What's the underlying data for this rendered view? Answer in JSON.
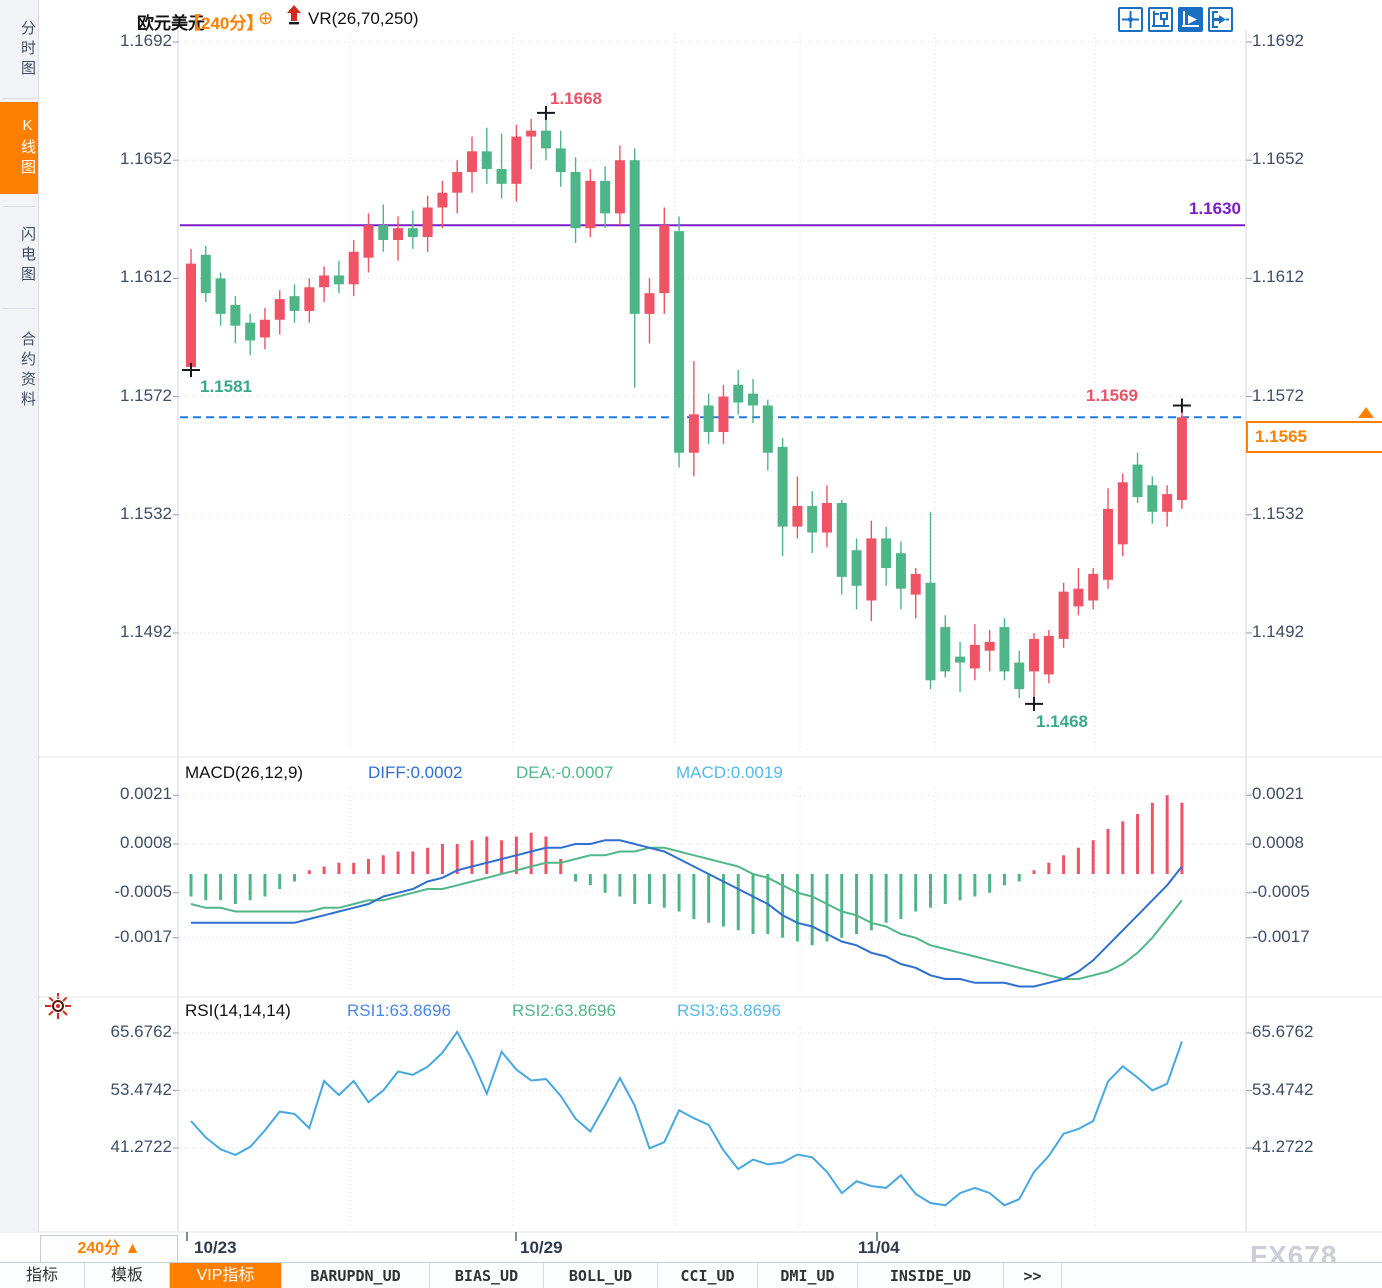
{
  "header": {
    "symbol": "欧元美元",
    "period_tag": "【240分】",
    "plus_icon": "⊕",
    "overlay_indicator": "VR(26,70,250)"
  },
  "sidebar": {
    "tabs": [
      {
        "label": "分时图",
        "active": false
      },
      {
        "label": "K线图",
        "active": true
      },
      {
        "label": "闪电图",
        "active": false
      },
      {
        "label": "合约资料",
        "active": false
      }
    ]
  },
  "toolbar_icons": [
    "crosshair-icon",
    "axes-icon",
    "axes-play-icon",
    "exit-right-icon"
  ],
  "main_chart": {
    "y_labels": [
      "1.1692",
      "1.1652",
      "1.1612",
      "1.1572",
      "1.1532",
      "1.1492"
    ],
    "annotations": {
      "high": "1.1668",
      "first_low": "1.1581",
      "purple_level": "1.1630",
      "final_high": "1.1569",
      "low": "1.1468"
    },
    "price_box": "1.1565"
  },
  "macd_panel": {
    "title": "MACD(26,12,9)",
    "diff_label": "DIFF:0.0002",
    "dea_label": "DEA:-0.0007",
    "macd_label": "MACD:0.0019",
    "y_labels": [
      "0.0021",
      "0.0008",
      "-0.0005",
      "-0.0017"
    ]
  },
  "rsi_panel": {
    "title": "RSI(14,14,14)",
    "rsi1_label": "RSI1:63.8696",
    "rsi2_label": "RSI2:63.8696",
    "rsi3_label": "RSI3:63.8696",
    "y_labels": [
      "65.6762",
      "53.4742",
      "41.2722"
    ]
  },
  "x_axis": {
    "dates": [
      "10/23",
      "10/29",
      "11/04"
    ]
  },
  "footer": {
    "period_selector": "240分 ▲",
    "tabs": [
      {
        "label": "指标",
        "active": false
      },
      {
        "label": "模板",
        "active": false
      },
      {
        "label": "VIP指标",
        "active": true
      },
      {
        "label": "BARUPDN_UD",
        "active": false
      },
      {
        "label": "BIAS_UD",
        "active": false
      },
      {
        "label": "BOLL_UD",
        "active": false
      },
      {
        "label": "CCI_UD",
        "active": false
      },
      {
        "label": "DMI_UD",
        "active": false
      },
      {
        "label": "INSIDE_UD",
        "active": false
      },
      {
        "label": ">>",
        "active": false
      }
    ]
  },
  "watermark": "FX678",
  "colors": {
    "up": "#ef5365",
    "down": "#4eb588",
    "accent_orange": "#ff7f00",
    "purple_line": "#7b1ec8",
    "dashed_blue": "#1e7ce0",
    "diff_blue": "#2f6fd0",
    "dea_green": "#52b788",
    "macd_cyan": "#55b9ea",
    "rsi_line": "#47a8e0",
    "axis_text": "#3f4d66",
    "grid": "#d7dce4",
    "icon_blue": "#1a6fc4",
    "label_red": "#e8556b",
    "label_teal": "#3aa88c"
  },
  "chart_data": [
    {
      "type": "candlestick",
      "title": "欧元美元 240分",
      "x_dates": [
        "10/23",
        "10/29",
        "11/04"
      ],
      "ylim": [
        1.1468,
        1.1692
      ],
      "y_ticks": [
        1.1692,
        1.1652,
        1.1612,
        1.1572,
        1.1532,
        1.1492
      ],
      "grid": "dotted",
      "hlines": [
        {
          "value": 1.163,
          "style": "solid",
          "color": "#7b1ec8",
          "label": "1.1630"
        },
        {
          "value": 1.1565,
          "style": "dashed",
          "color": "#1e7ce0",
          "label": "1.1565"
        }
      ],
      "markers": [
        {
          "index": 0,
          "price": 1.1581
        },
        {
          "index": 24,
          "price": 1.1668
        },
        {
          "index": 57,
          "price": 1.1468
        },
        {
          "index": 67,
          "price": 1.1569
        }
      ],
      "ohlc": [
        [
          1.1582,
          1.1622,
          1.1581,
          1.1617
        ],
        [
          1.162,
          1.1623,
          1.1604,
          1.1607
        ],
        [
          1.1612,
          1.1614,
          1.1596,
          1.16
        ],
        [
          1.1603,
          1.1606,
          1.159,
          1.1596
        ],
        [
          1.1597,
          1.16,
          1.1586,
          1.1591
        ],
        [
          1.1592,
          1.1602,
          1.1588,
          1.1598
        ],
        [
          1.1598,
          1.1608,
          1.1593,
          1.1605
        ],
        [
          1.1606,
          1.161,
          1.1597,
          1.1601
        ],
        [
          1.1601,
          1.1612,
          1.1597,
          1.1609
        ],
        [
          1.1609,
          1.1616,
          1.1604,
          1.1613
        ],
        [
          1.1613,
          1.1618,
          1.1607,
          1.161
        ],
        [
          1.161,
          1.1625,
          1.1606,
          1.1621
        ],
        [
          1.1619,
          1.1634,
          1.1614,
          1.163
        ],
        [
          1.163,
          1.1637,
          1.1621,
          1.1625
        ],
        [
          1.1625,
          1.1633,
          1.1618,
          1.1629
        ],
        [
          1.1629,
          1.1635,
          1.1622,
          1.1626
        ],
        [
          1.1626,
          1.164,
          1.1621,
          1.1636
        ],
        [
          1.1636,
          1.1645,
          1.1629,
          1.1641
        ],
        [
          1.1641,
          1.1652,
          1.1634,
          1.1648
        ],
        [
          1.1648,
          1.166,
          1.1641,
          1.1655
        ],
        [
          1.1655,
          1.1663,
          1.1644,
          1.1649
        ],
        [
          1.1649,
          1.1661,
          1.1639,
          1.1644
        ],
        [
          1.1644,
          1.1664,
          1.1638,
          1.166
        ],
        [
          1.166,
          1.1666,
          1.1649,
          1.1662
        ],
        [
          1.1662,
          1.1668,
          1.1652,
          1.1656
        ],
        [
          1.1656,
          1.1662,
          1.1643,
          1.1648
        ],
        [
          1.1648,
          1.1653,
          1.1624,
          1.1629
        ],
        [
          1.1629,
          1.1649,
          1.1626,
          1.1645
        ],
        [
          1.1645,
          1.165,
          1.1629,
          1.1634
        ],
        [
          1.1634,
          1.1657,
          1.163,
          1.1652
        ],
        [
          1.1652,
          1.1656,
          1.1575,
          1.16
        ],
        [
          1.16,
          1.1612,
          1.159,
          1.1607
        ],
        [
          1.1607,
          1.1636,
          1.16,
          1.163
        ],
        [
          1.1628,
          1.1633,
          1.1548,
          1.1553
        ],
        [
          1.1553,
          1.1584,
          1.1545,
          1.1566
        ],
        [
          1.1569,
          1.1573,
          1.1556,
          1.156
        ],
        [
          1.156,
          1.1576,
          1.1556,
          1.1572
        ],
        [
          1.1576,
          1.1581,
          1.1566,
          1.157
        ],
        [
          1.1573,
          1.1578,
          1.1563,
          1.1569
        ],
        [
          1.1569,
          1.1571,
          1.1547,
          1.1553
        ],
        [
          1.1555,
          1.1558,
          1.1518,
          1.1528
        ],
        [
          1.1528,
          1.1545,
          1.1524,
          1.1535
        ],
        [
          1.1535,
          1.154,
          1.1519,
          1.1526
        ],
        [
          1.1526,
          1.1542,
          1.1521,
          1.1536
        ],
        [
          1.1536,
          1.1537,
          1.1505,
          1.1511
        ],
        [
          1.152,
          1.1524,
          1.15,
          1.1508
        ],
        [
          1.1503,
          1.153,
          1.1496,
          1.1524
        ],
        [
          1.1524,
          1.1528,
          1.1508,
          1.1514
        ],
        [
          1.1519,
          1.1523,
          1.15,
          1.1507
        ],
        [
          1.1505,
          1.1514,
          1.1497,
          1.1512
        ],
        [
          1.1509,
          1.1533,
          1.1473,
          1.1476
        ],
        [
          1.1494,
          1.1498,
          1.1477,
          1.1479
        ],
        [
          1.1484,
          1.1489,
          1.1472,
          1.1482
        ],
        [
          1.148,
          1.1495,
          1.1476,
          1.1488
        ],
        [
          1.1486,
          1.1493,
          1.1479,
          1.1489
        ],
        [
          1.1494,
          1.1497,
          1.1476,
          1.1479
        ],
        [
          1.1482,
          1.1486,
          1.147,
          1.1473
        ],
        [
          1.1479,
          1.1492,
          1.1468,
          1.149
        ],
        [
          1.1478,
          1.1493,
          1.1475,
          1.1491
        ],
        [
          1.149,
          1.1509,
          1.1487,
          1.1506
        ],
        [
          1.1501,
          1.1514,
          1.1498,
          1.1507
        ],
        [
          1.1503,
          1.1514,
          1.15,
          1.1512
        ],
        [
          1.151,
          1.1541,
          1.1507,
          1.1534
        ],
        [
          1.1522,
          1.1546,
          1.1518,
          1.1543
        ],
        [
          1.1549,
          1.1553,
          1.1536,
          1.1538
        ],
        [
          1.1542,
          1.1545,
          1.1529,
          1.1533
        ],
        [
          1.1533,
          1.1542,
          1.1528,
          1.1539
        ],
        [
          1.1537,
          1.1569,
          1.1534,
          1.1565
        ]
      ]
    },
    {
      "type": "bar",
      "name": "MACD(26,12,9)",
      "diff": 0.0002,
      "dea": -0.0007,
      "macd": 0.0019,
      "y_ticks": [
        0.0021,
        0.0008,
        -0.0005,
        -0.0017
      ],
      "hist": [
        -0.0006,
        -0.0007,
        -0.0007,
        -0.0008,
        -0.0007,
        -0.0006,
        -0.0004,
        -0.0002,
        0.0001,
        0.0002,
        0.0003,
        0.0003,
        0.0004,
        0.0005,
        0.0006,
        0.0006,
        0.0007,
        0.0008,
        0.0008,
        0.0009,
        0.001,
        0.0009,
        0.001,
        0.0011,
        0.001,
        0.0004,
        -0.0002,
        -0.0003,
        -0.0005,
        -0.0006,
        -0.0008,
        -0.0008,
        -0.0009,
        -0.001,
        -0.0012,
        -0.0013,
        -0.0014,
        -0.0015,
        -0.0016,
        -0.0016,
        -0.0017,
        -0.0018,
        -0.0019,
        -0.0018,
        -0.0017,
        -0.0016,
        -0.0015,
        -0.0013,
        -0.0012,
        -0.001,
        -0.0009,
        -0.0008,
        -0.0007,
        -0.0006,
        -0.0005,
        -0.0003,
        -0.0002,
        0.0001,
        0.0003,
        0.0005,
        0.0007,
        0.0009,
        0.0012,
        0.0014,
        0.0016,
        0.0019,
        0.0021,
        0.0019
      ],
      "diff_line": [
        -0.0013,
        -0.0013,
        -0.0013,
        -0.0013,
        -0.0013,
        -0.0013,
        -0.0013,
        -0.0013,
        -0.0012,
        -0.0011,
        -0.001,
        -0.0009,
        -0.0008,
        -0.0006,
        -0.0005,
        -0.0004,
        -0.0002,
        -0.0001,
        0.0001,
        0.0002,
        0.0003,
        0.0004,
        0.0005,
        0.0006,
        0.0007,
        0.0007,
        0.0008,
        0.0008,
        0.0009,
        0.0009,
        0.0008,
        0.0007,
        0.0006,
        0.0004,
        0.0002,
        0.0,
        -0.0002,
        -0.0004,
        -0.0006,
        -0.0008,
        -0.0011,
        -0.0013,
        -0.0014,
        -0.0016,
        -0.0018,
        -0.0019,
        -0.0021,
        -0.0022,
        -0.0024,
        -0.0025,
        -0.0027,
        -0.0028,
        -0.0028,
        -0.0029,
        -0.0029,
        -0.0029,
        -0.003,
        -0.003,
        -0.0029,
        -0.0028,
        -0.0026,
        -0.0023,
        -0.0019,
        -0.0015,
        -0.0011,
        -0.0007,
        -0.0003,
        0.0002
      ],
      "dea_line": [
        -0.0008,
        -0.0009,
        -0.0009,
        -0.001,
        -0.001,
        -0.001,
        -0.001,
        -0.001,
        -0.001,
        -0.0009,
        -0.0009,
        -0.0008,
        -0.0007,
        -0.0007,
        -0.0006,
        -0.0005,
        -0.0004,
        -0.0004,
        -0.0003,
        -0.0002,
        -0.0001,
        0.0,
        0.0001,
        0.0002,
        0.0003,
        0.0003,
        0.0004,
        0.0005,
        0.0005,
        0.0006,
        0.0006,
        0.0007,
        0.0007,
        0.0006,
        0.0005,
        0.0004,
        0.0003,
        0.0002,
        0.0,
        -0.0001,
        -0.0003,
        -0.0005,
        -0.0006,
        -0.0008,
        -0.001,
        -0.0011,
        -0.0013,
        -0.0014,
        -0.0016,
        -0.0017,
        -0.0019,
        -0.002,
        -0.0021,
        -0.0022,
        -0.0023,
        -0.0024,
        -0.0025,
        -0.0026,
        -0.0027,
        -0.0028,
        -0.0028,
        -0.0027,
        -0.0026,
        -0.0024,
        -0.0021,
        -0.0017,
        -0.0012,
        -0.0007
      ]
    },
    {
      "type": "line",
      "name": "RSI(14,14,14)",
      "rsi1": 63.8696,
      "rsi2": 63.8696,
      "rsi3": 63.8696,
      "y_ticks": [
        65.6762,
        53.4742,
        41.2722
      ],
      "values": [
        47,
        43.5,
        41,
        39.8,
        41.5,
        45,
        49,
        48.5,
        45.5,
        55.5,
        52.5,
        55.5,
        51,
        53.5,
        57.5,
        56.8,
        58.5,
        61.5,
        65.9,
        60,
        52.8,
        61.7,
        57.9,
        55.6,
        55.9,
        52.3,
        47.5,
        44.8,
        50.3,
        56.1,
        50.3,
        41.2,
        42.5,
        49.3,
        47.6,
        46.2,
        40.8,
        36.8,
        38.8,
        37.8,
        38.2,
        39.9,
        39.3,
        36.2,
        31.7,
        34.2,
        33.2,
        32.8,
        35.5,
        31.5,
        29.6,
        29.1,
        31.7,
        32.8,
        31.7,
        29.1,
        30.4,
        36.2,
        39.6,
        44.3,
        45.3,
        47.0,
        55.4,
        58.6,
        56.2,
        53.5,
        54.9,
        63.9
      ]
    }
  ]
}
